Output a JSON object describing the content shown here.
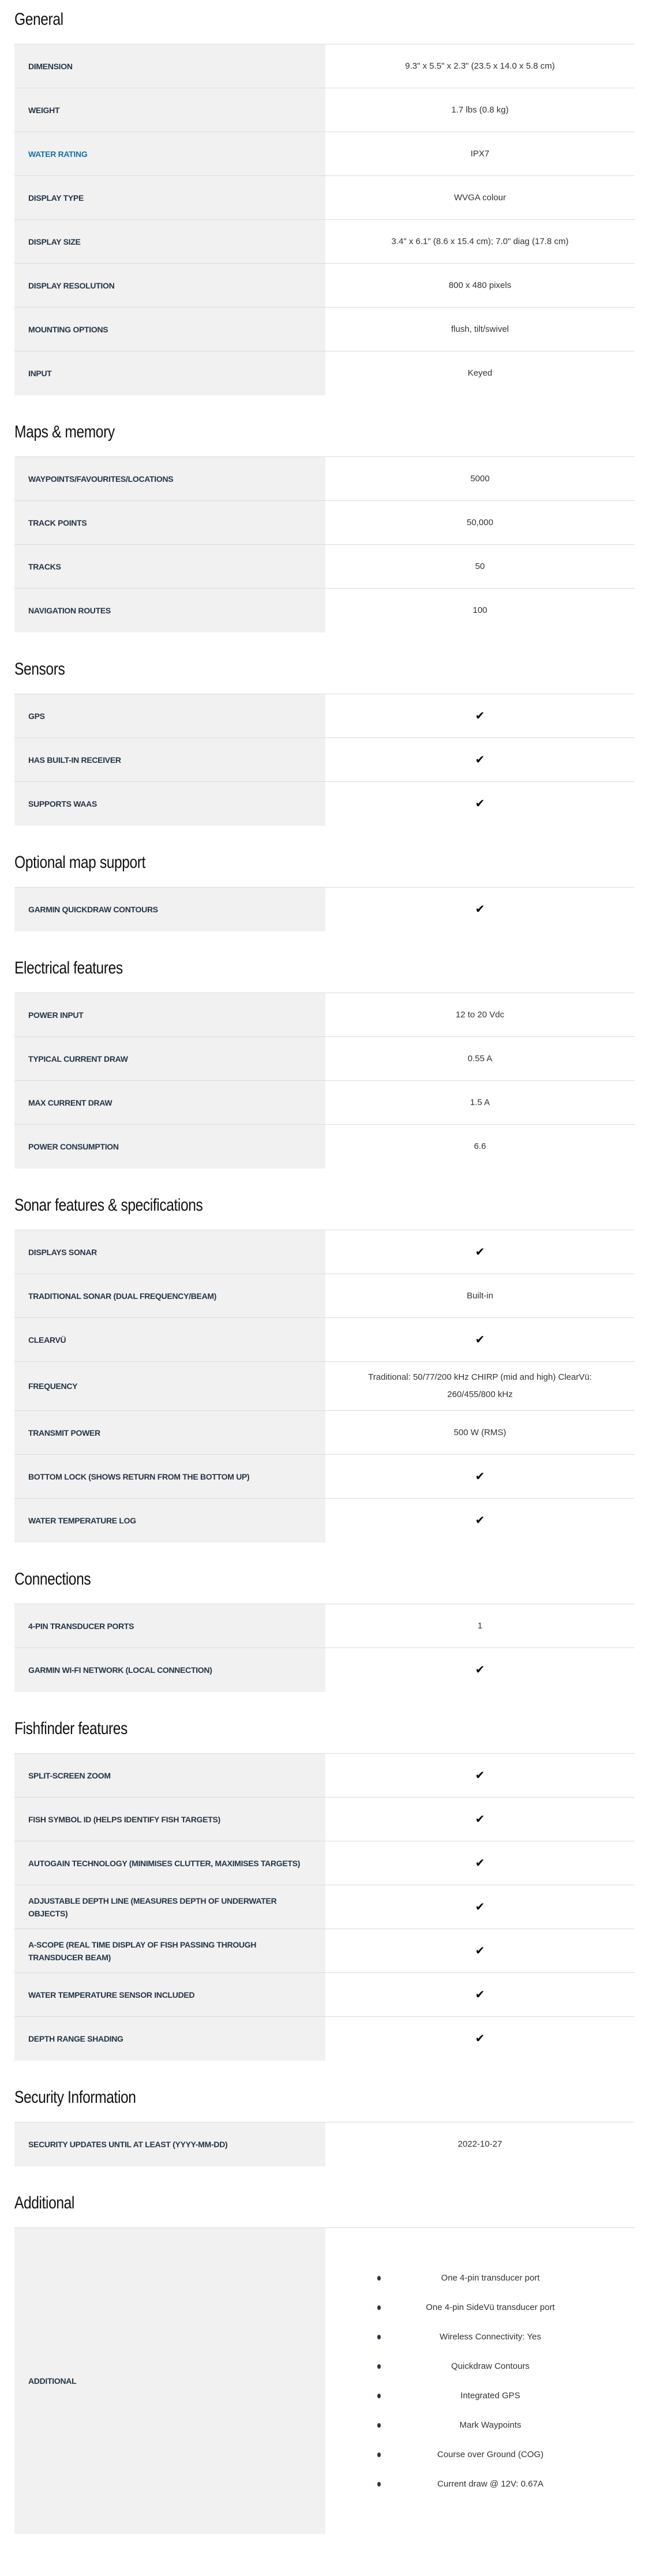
{
  "sections": [
    {
      "title": "General",
      "rows": [
        {
          "label": "DIMENSION",
          "value": "9.3\" x 5.5\" x 2.3\" (23.5 x 14.0 x 5.8 cm)"
        },
        {
          "label": "WEIGHT",
          "value": "1.7 lbs (0.8 kg)"
        },
        {
          "label": "WATER RATING",
          "value": "IPX7",
          "link": true
        },
        {
          "label": "DISPLAY TYPE",
          "value": "WVGA colour"
        },
        {
          "label": "DISPLAY SIZE",
          "value": "3.4\" x 6.1\" (8.6 x 15.4 cm); 7.0\" diag (17.8 cm)"
        },
        {
          "label": "DISPLAY RESOLUTION",
          "value": "800 x 480 pixels"
        },
        {
          "label": "MOUNTING OPTIONS",
          "value": "flush, tilt/swivel"
        },
        {
          "label": "INPUT",
          "value": "Keyed"
        }
      ]
    },
    {
      "title": "Maps & memory",
      "rows": [
        {
          "label": "WAYPOINTS/FAVOURITES/LOCATIONS",
          "value": "5000"
        },
        {
          "label": "TRACK POINTS",
          "value": "50,000"
        },
        {
          "label": "TRACKS",
          "value": "50"
        },
        {
          "label": "NAVIGATION ROUTES",
          "value": "100"
        }
      ]
    },
    {
      "title": "Sensors",
      "rows": [
        {
          "label": "GPS",
          "check": true
        },
        {
          "label": "HAS BUILT-IN RECEIVER",
          "check": true
        },
        {
          "label": "SUPPORTS WAAS",
          "check": true
        }
      ]
    },
    {
      "title": "Optional map support",
      "rows": [
        {
          "label": "GARMIN QUICKDRAW CONTOURS",
          "check": true
        }
      ]
    },
    {
      "title": "Electrical features",
      "rows": [
        {
          "label": "POWER INPUT",
          "value": "12 to 20 Vdc"
        },
        {
          "label": "TYPICAL CURRENT DRAW",
          "value": "0.55 A"
        },
        {
          "label": "MAX CURRENT DRAW",
          "value": "1.5 A"
        },
        {
          "label": "POWER CONSUMPTION",
          "value": "6.6"
        }
      ]
    },
    {
      "title": "Sonar features & specifications",
      "rows": [
        {
          "label": "DISPLAYS SONAR",
          "check": true
        },
        {
          "label": "TRADITIONAL SONAR (DUAL FREQUENCY/BEAM)",
          "value": "Built-in"
        },
        {
          "label": "CLEARVÜ",
          "check": true
        },
        {
          "label": "FREQUENCY",
          "value": "Traditional: 50/77/200 kHz CHIRP (mid and high) ClearVü: 260/455/800 kHz"
        },
        {
          "label": "TRANSMIT POWER",
          "value": "500 W (RMS)"
        },
        {
          "label": "BOTTOM LOCK (SHOWS RETURN FROM THE BOTTOM UP)",
          "check": true
        },
        {
          "label": "WATER TEMPERATURE LOG",
          "check": true
        }
      ]
    },
    {
      "title": "Connections",
      "rows": [
        {
          "label": "4-PIN TRANSDUCER PORTS",
          "value": "1"
        },
        {
          "label": "GARMIN WI-FI NETWORK (LOCAL CONNECTION)",
          "check": true
        }
      ]
    },
    {
      "title": "Fishfinder features",
      "rows": [
        {
          "label": "SPLIT-SCREEN ZOOM",
          "check": true
        },
        {
          "label": "FISH SYMBOL ID (HELPS IDENTIFY FISH TARGETS)",
          "check": true
        },
        {
          "label": "AUTOGAIN TECHNOLOGY (MINIMISES CLUTTER, MAXIMISES TARGETS)",
          "check": true
        },
        {
          "label": "ADJUSTABLE DEPTH LINE (MEASURES DEPTH OF UNDERWATER OBJECTS)",
          "check": true
        },
        {
          "label": "A-SCOPE (REAL TIME DISPLAY OF FISH PASSING THROUGH TRANSDUCER BEAM)",
          "check": true
        },
        {
          "label": "WATER TEMPERATURE SENSOR INCLUDED",
          "check": true
        },
        {
          "label": "DEPTH RANGE SHADING",
          "check": true
        }
      ]
    },
    {
      "title": "Security Information",
      "rows": [
        {
          "label": "SECURITY UPDATES UNTIL AT LEAST (YYYY-MM-DD)",
          "value": "2022-10-27"
        }
      ]
    }
  ],
  "additional": {
    "title": "Additional",
    "label": "ADDITIONAL",
    "items": [
      "One 4-pin transducer port",
      "One 4-pin SideVü transducer port",
      "Wireless Connectivity: Yes",
      "Quickdraw Contours",
      "Integrated GPS",
      "Mark Waypoints",
      "Course over Ground (COG)",
      "Current draw @ 12V: 0.67A"
    ]
  },
  "check_icon": "✔",
  "colors": {
    "label_bg": "#f1f1f1",
    "label_text": "#253545",
    "link": "#1a6fa8"
  }
}
